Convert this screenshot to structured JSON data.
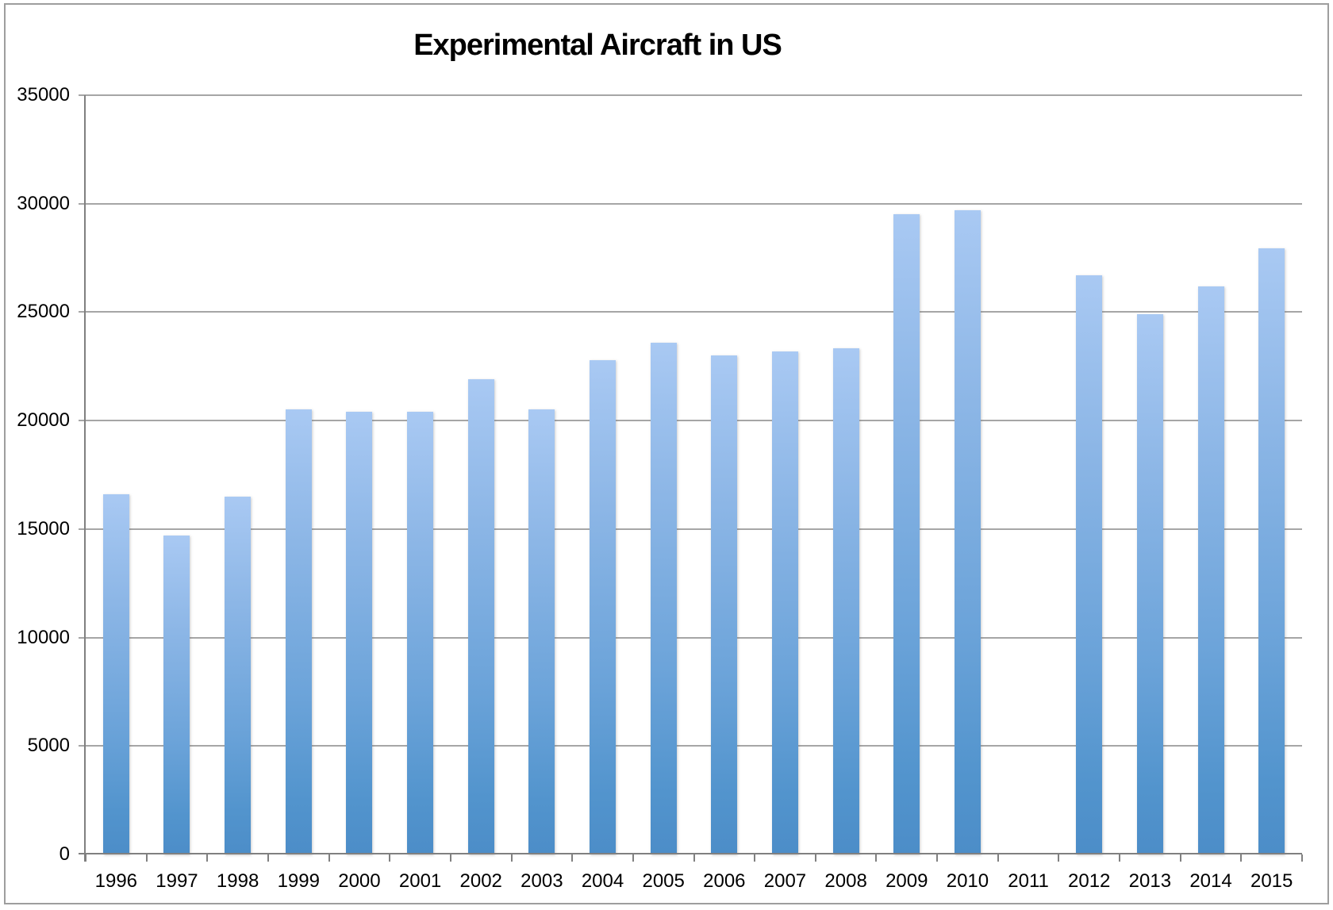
{
  "title": "Experimental Aircraft in US",
  "chart_data": {
    "type": "bar",
    "title": "Experimental Aircraft in US",
    "xlabel": "",
    "ylabel": "",
    "categories": [
      "1996",
      "1997",
      "1998",
      "1999",
      "2000",
      "2001",
      "2002",
      "2003",
      "2004",
      "2005",
      "2006",
      "2007",
      "2008",
      "2009",
      "2010",
      "2011",
      "2012",
      "2013",
      "2014",
      "2015"
    ],
    "values": [
      16600,
      14700,
      16500,
      20500,
      20400,
      20400,
      21900,
      20500,
      22800,
      23600,
      23000,
      23200,
      23350,
      29500,
      29700,
      null,
      26700,
      24900,
      26200,
      27950
    ],
    "ylim": [
      0,
      35000
    ],
    "ytick_interval": 5000,
    "ytick_labels": [
      "0",
      "5000",
      "10000",
      "15000",
      "20000",
      "25000",
      "30000",
      "35000"
    ],
    "grid": true,
    "legend": false,
    "note": "no bar shown for 2011"
  },
  "colors": {
    "bar_gradient_top": "#a9c9f3",
    "bar_gradient_bottom": "#4c8dc8",
    "gridline": "#a6a6a6",
    "axis": "#808080",
    "border": "#9e9e9e",
    "text": "#000000",
    "background": "#ffffff"
  }
}
